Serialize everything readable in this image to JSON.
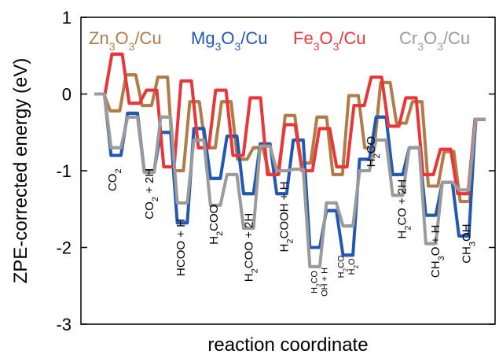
{
  "chart_data": {
    "type": "line",
    "xlabel": "reaction coordinate",
    "ylabel": "ZPE-corrected energy (eV)",
    "ylim": [
      -3,
      1
    ],
    "yticks": [
      1,
      0,
      -1,
      -2,
      -3
    ],
    "grid": false,
    "legend_position": "top",
    "series": [
      {
        "name": "Zn3O3/Cu",
        "name_parts": [
          [
            "Zn",
            false
          ],
          [
            "3",
            true
          ],
          [
            "O",
            false
          ],
          [
            "3",
            true
          ],
          [
            "/Cu",
            false
          ]
        ],
        "color": "#b07d48",
        "values": [
          0,
          -0.22,
          0.25,
          -0.15,
          0.22,
          -1.0,
          -0.1,
          -0.7,
          -0.1,
          -0.85,
          -0.7,
          -1.05,
          -0.28,
          -0.9,
          -0.3,
          -1.05,
          -0.02,
          -0.7,
          0.15,
          -0.38,
          -0.1,
          -1.2,
          -0.75,
          -1.4,
          -0.33
        ]
      },
      {
        "name": "Mg3O3/Cu",
        "name_parts": [
          [
            "Mg",
            false
          ],
          [
            "3",
            true
          ],
          [
            "O",
            false
          ],
          [
            "3",
            true
          ],
          [
            "/Cu",
            false
          ]
        ],
        "color": "#2358b0",
        "values": [
          0,
          -0.8,
          -0.25,
          -1.0,
          -0.5,
          -1.68,
          -0.45,
          -1.1,
          -0.55,
          -1.3,
          -0.65,
          -1.3,
          -0.6,
          -2.0,
          -1.52,
          -2.1,
          -0.85,
          -0.3,
          -1.05,
          -0.7,
          -1.58,
          -1.15,
          -1.85,
          -0.33
        ]
      },
      {
        "name": "Fe3O3/Cu",
        "name_parts": [
          [
            "Fe",
            false
          ],
          [
            "3",
            true
          ],
          [
            "O",
            false
          ],
          [
            "3",
            true
          ],
          [
            "/Cu",
            false
          ]
        ],
        "color": "#e8373b",
        "values": [
          0,
          0.52,
          -0.12,
          0.05,
          -0.95,
          0.17,
          -0.7,
          0.05,
          -0.8,
          -0.05,
          -1.05,
          -0.4,
          -1.0,
          -0.45,
          -0.95,
          -0.15,
          0.22,
          -0.42,
          -0.05,
          -1.05,
          -0.72,
          -1.3,
          -0.33
        ]
      },
      {
        "name": "Cr3O3/Cu",
        "name_parts": [
          [
            "Cr",
            false
          ],
          [
            "3",
            true
          ],
          [
            "O",
            false
          ],
          [
            "3",
            true
          ],
          [
            "/Cu",
            false
          ]
        ],
        "color": "#9b9b9b",
        "values": [
          0,
          -0.7,
          -0.3,
          -1.02,
          -0.3,
          -1.42,
          -0.6,
          -1.45,
          -1.05,
          -1.75,
          -0.68,
          -1.0,
          -0.98,
          -2.25,
          -1.42,
          -1.72,
          -1.0,
          -0.6,
          -1.32,
          -0.7,
          -1.95,
          -1.15,
          -1.25,
          -0.33
        ]
      }
    ],
    "annotations": [
      {
        "parts": [
          [
            "CO",
            false
          ],
          [
            "2",
            true
          ]
        ],
        "x": 0.085,
        "y": -1.12,
        "rotate": -90,
        "size": "normal"
      },
      {
        "parts": [
          [
            "CO",
            false
          ],
          [
            "2",
            true
          ],
          [
            " + 2H",
            false
          ]
        ],
        "x": 0.175,
        "y": -1.3,
        "rotate": -90,
        "size": "normal"
      },
      {
        "parts": [
          [
            "HCOO + H",
            false
          ]
        ],
        "x": 0.25,
        "y": -2.0,
        "rotate": -90,
        "size": "normal"
      },
      {
        "parts": [
          [
            "H",
            false
          ],
          [
            "2",
            true
          ],
          [
            "COO",
            false
          ]
        ],
        "x": 0.33,
        "y": -1.7,
        "rotate": -90,
        "size": "normal"
      },
      {
        "parts": [
          [
            "H",
            false
          ],
          [
            "2",
            true
          ],
          [
            "COO + 2H",
            false
          ]
        ],
        "x": 0.415,
        "y": -2.0,
        "rotate": -90,
        "size": "normal"
      },
      {
        "parts": [
          [
            "H",
            false
          ],
          [
            "2",
            true
          ],
          [
            "COOH + H",
            false
          ]
        ],
        "x": 0.5,
        "y": -1.6,
        "rotate": -90,
        "size": "normal"
      },
      {
        "parts": [
          [
            "H",
            false
          ],
          [
            "2",
            true
          ],
          [
            "CO",
            false
          ]
        ],
        "x": 0.57,
        "y": -2.45,
        "rotate": -90,
        "size": "small"
      },
      {
        "parts": [
          [
            "OH + H",
            false
          ]
        ],
        "x": 0.595,
        "y": -2.45,
        "rotate": -90,
        "size": "small"
      },
      {
        "parts": [
          [
            "H",
            false
          ],
          [
            "2",
            true
          ],
          [
            "CO",
            false
          ]
        ],
        "x": 0.635,
        "y": -2.25,
        "rotate": -90,
        "size": "small"
      },
      {
        "parts": [
          [
            "H",
            false
          ],
          [
            "2",
            true
          ],
          [
            "O",
            false
          ]
        ],
        "x": 0.66,
        "y": -2.25,
        "rotate": -90,
        "size": "small"
      },
      {
        "parts": [
          [
            "H",
            false
          ],
          [
            "2",
            true
          ],
          [
            "CO",
            false
          ]
        ],
        "x": 0.71,
        "y": -0.75,
        "rotate": -90,
        "size": "normal"
      },
      {
        "parts": [
          [
            "H",
            false
          ],
          [
            "2",
            true
          ],
          [
            "CO + 2H",
            false
          ]
        ],
        "x": 0.785,
        "y": -1.5,
        "rotate": -90,
        "size": "normal"
      },
      {
        "parts": [
          [
            "CH",
            false
          ],
          [
            "3",
            true
          ],
          [
            "O + H",
            false
          ]
        ],
        "x": 0.865,
        "y": -2.05,
        "rotate": -90,
        "size": "normal"
      },
      {
        "parts": [
          [
            "CH",
            false
          ],
          [
            "3",
            true
          ],
          [
            "OH",
            false
          ]
        ],
        "x": 0.94,
        "y": -1.95,
        "rotate": -90,
        "size": "normal"
      }
    ]
  }
}
